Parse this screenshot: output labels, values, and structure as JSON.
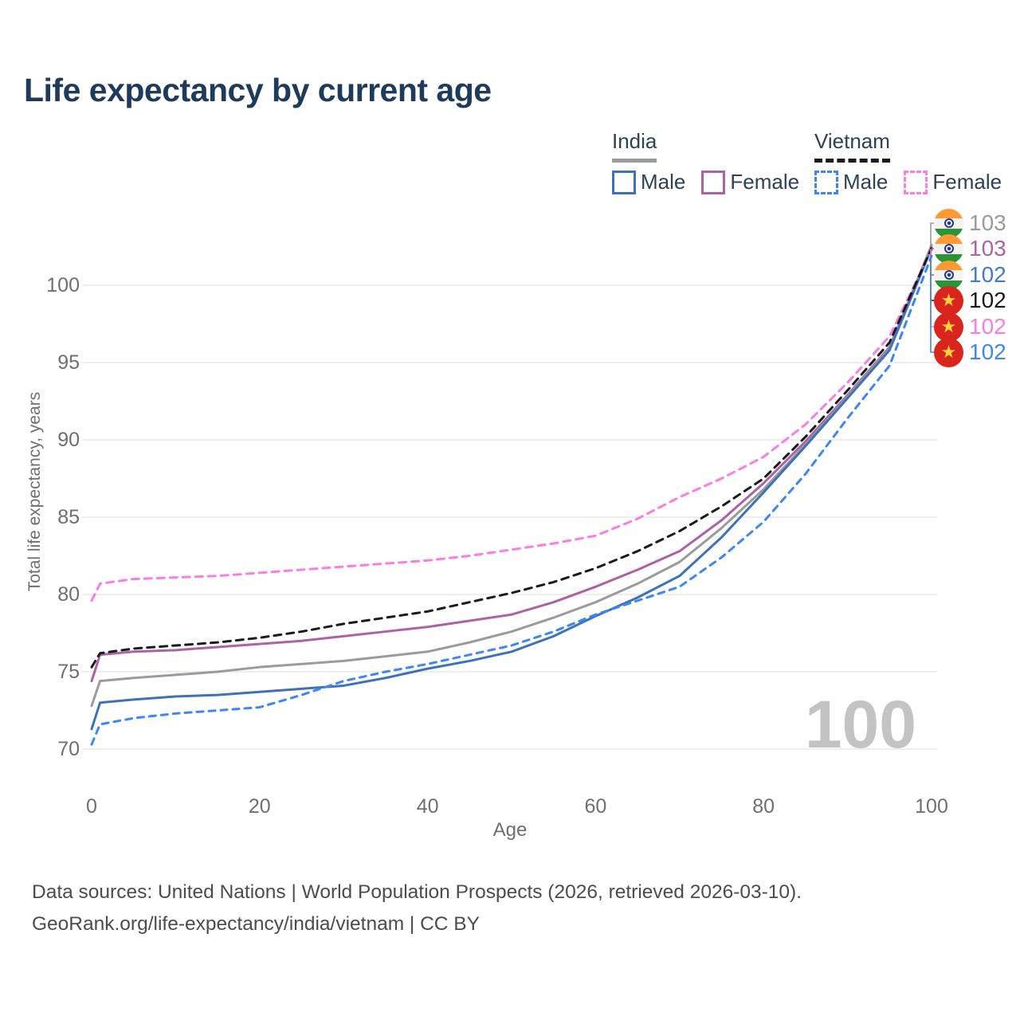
{
  "title": "Life expectancy by current age",
  "watermark": "100",
  "legend": {
    "groups": [
      {
        "country": "India",
        "line_style": "solid",
        "line_color": "#9b9b9b",
        "items": [
          {
            "label": "Male",
            "color": "#3e72b8",
            "dashed": false
          },
          {
            "label": "Female",
            "color": "#ae62a6",
            "dashed": false
          }
        ]
      },
      {
        "country": "Vietnam",
        "line_style": "dashed",
        "line_color": "#1b1b1b",
        "items": [
          {
            "label": "Male",
            "color": "#3e86f7",
            "dashed": true
          },
          {
            "label": "Female",
            "color": "#fb7de2",
            "dashed": true
          }
        ]
      }
    ]
  },
  "y_axis": {
    "title": "Total life expectancy, years",
    "ticks": [
      70,
      75,
      80,
      85,
      90,
      95,
      100
    ],
    "range": [
      69,
      103.5
    ]
  },
  "x_axis": {
    "title": "Age",
    "ticks": [
      0,
      20,
      40,
      60,
      80,
      100
    ],
    "range": [
      0,
      100
    ]
  },
  "end_labels": [
    {
      "flag": "india",
      "value": "103",
      "color": "#9b9b9b",
      "end_value": 102.6
    },
    {
      "flag": "india",
      "value": "103",
      "color": "#ae62a6",
      "end_value": 102.55
    },
    {
      "flag": "india",
      "value": "102",
      "color": "#4679c6",
      "end_value": 102.4
    },
    {
      "flag": "vietnam",
      "value": "102",
      "color": "#1b1b1b",
      "end_value": 102.4
    },
    {
      "flag": "vietnam",
      "value": "102",
      "color": "#fb7de2",
      "end_value": 102.3
    },
    {
      "flag": "vietnam",
      "value": "102",
      "color": "#3e86f7",
      "end_value": 101.9
    }
  ],
  "footer": {
    "line1": "Data sources: United Nations | World Population Prospects (2026, retrieved 2026-03-10).",
    "line2": "GeoRank.org/life-expectancy/india/vietnam | CC BY"
  },
  "chart_data": {
    "type": "line",
    "title": "Life expectancy by current age",
    "xlabel": "Age",
    "ylabel": "Total life expectancy, years",
    "xlim": [
      0,
      100
    ],
    "ylim": [
      69,
      103.5
    ],
    "grid": "horizontal",
    "legend_position": "top-right",
    "x": [
      0,
      1,
      5,
      10,
      15,
      20,
      25,
      30,
      35,
      40,
      45,
      50,
      55,
      60,
      65,
      70,
      75,
      80,
      85,
      90,
      95,
      100
    ],
    "series": [
      {
        "name": "India Female",
        "color": "#ae62a6",
        "dash": null,
        "values": [
          74.4,
          76.1,
          76.3,
          76.4,
          76.6,
          76.8,
          77.0,
          77.3,
          77.6,
          77.9,
          78.3,
          78.7,
          79.5,
          80.5,
          81.6,
          82.8,
          84.8,
          87.2,
          89.9,
          92.9,
          96.0,
          102.55
        ]
      },
      {
        "name": "India Total",
        "color": "#9b9b9b",
        "dash": null,
        "values": [
          72.8,
          74.4,
          74.6,
          74.8,
          75.0,
          75.3,
          75.5,
          75.7,
          76.0,
          76.3,
          76.9,
          77.6,
          78.5,
          79.5,
          80.7,
          82.1,
          84.3,
          86.8,
          89.7,
          92.8,
          95.9,
          102.6
        ]
      },
      {
        "name": "India Male",
        "color": "#3e72b8",
        "dash": null,
        "values": [
          71.3,
          73.0,
          73.2,
          73.4,
          73.5,
          73.7,
          73.9,
          74.1,
          74.6,
          75.2,
          75.7,
          76.3,
          77.3,
          78.6,
          79.8,
          81.2,
          83.7,
          86.6,
          89.6,
          92.7,
          95.8,
          102.4
        ]
      },
      {
        "name": "Vietnam Female",
        "color": "#fb7de2",
        "dash": "9 7",
        "values": [
          79.6,
          80.7,
          81.0,
          81.1,
          81.2,
          81.4,
          81.6,
          81.8,
          82.0,
          82.2,
          82.5,
          82.9,
          83.3,
          83.8,
          84.9,
          86.3,
          87.5,
          88.9,
          91.0,
          93.7,
          96.7,
          102.3
        ]
      },
      {
        "name": "Vietnam Total",
        "color": "#1b1b1b",
        "dash": "9 7",
        "values": [
          75.3,
          76.2,
          76.5,
          76.7,
          76.9,
          77.2,
          77.6,
          78.1,
          78.5,
          78.9,
          79.5,
          80.1,
          80.8,
          81.7,
          82.8,
          84.1,
          85.7,
          87.5,
          90.2,
          93.2,
          96.3,
          102.4
        ]
      },
      {
        "name": "Vietnam Male",
        "color": "#3e86f7",
        "dash": "8 7",
        "values": [
          70.3,
          71.6,
          72.0,
          72.3,
          72.5,
          72.7,
          73.5,
          74.4,
          75.0,
          75.5,
          76.1,
          76.7,
          77.6,
          78.7,
          79.6,
          80.5,
          82.4,
          84.7,
          87.8,
          91.4,
          94.8,
          101.9
        ]
      }
    ]
  }
}
